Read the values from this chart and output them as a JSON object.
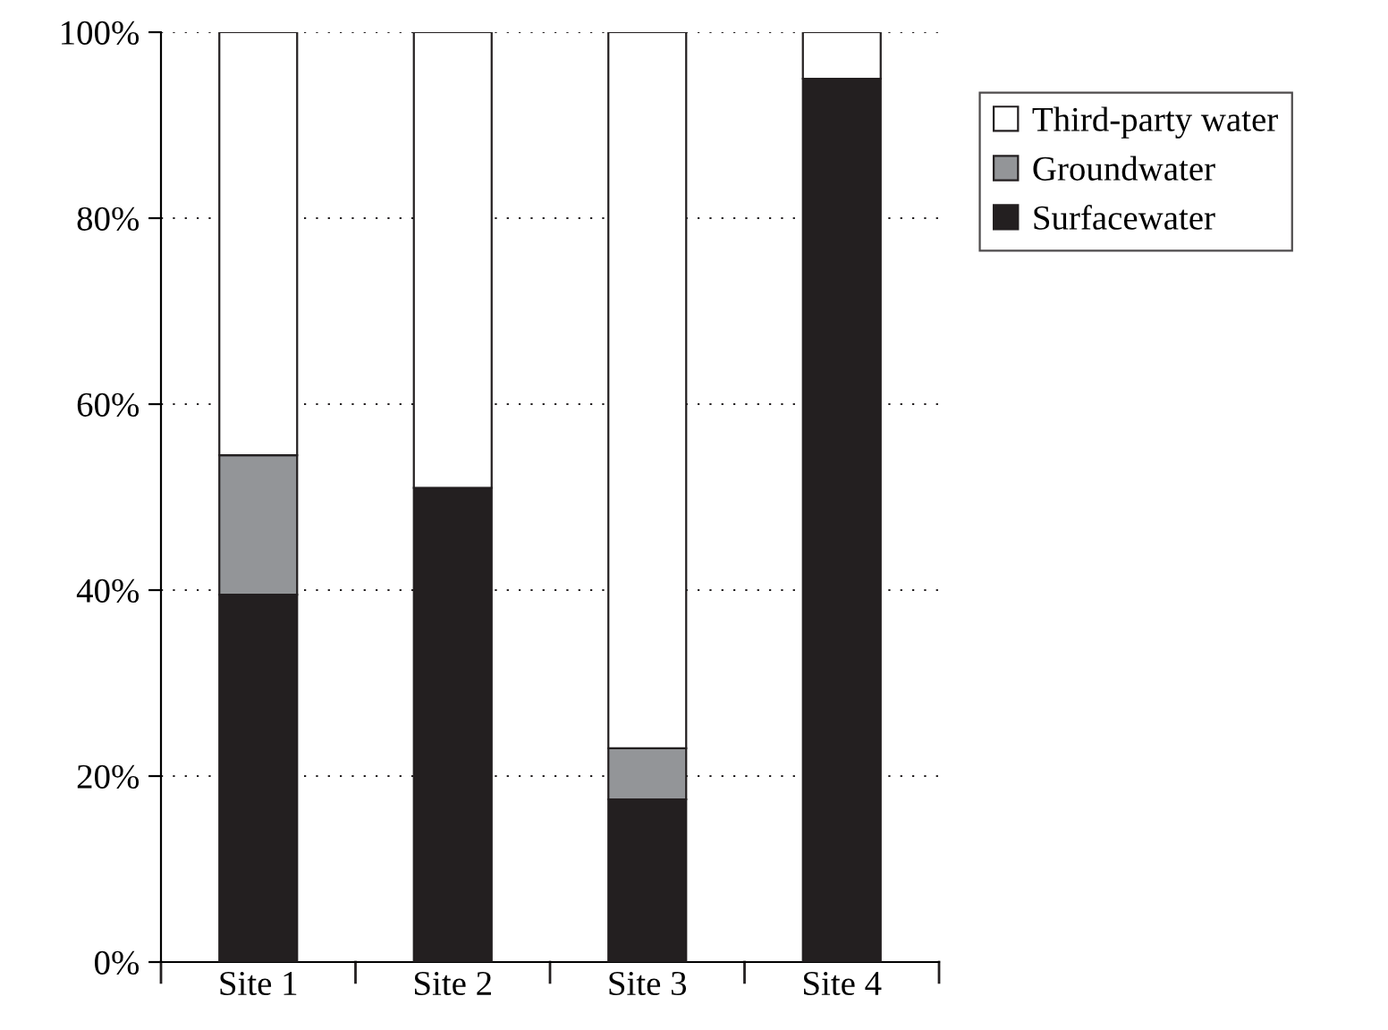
{
  "chart_data": {
    "type": "bar",
    "stacked": true,
    "categories": [
      "Site 1",
      "Site 2",
      "Site 3",
      "Site 4"
    ],
    "series": [
      {
        "name": "Surfacewater",
        "color": "#231f20",
        "values": [
          39.5,
          51,
          17.5,
          95
        ]
      },
      {
        "name": "Groundwater",
        "color": "#939598",
        "values": [
          15,
          0,
          5.5,
          0
        ]
      },
      {
        "name": "Third-party water",
        "color": "#ffffff",
        "values": [
          45.5,
          49,
          77,
          5
        ]
      }
    ],
    "ylim": [
      0,
      100
    ],
    "yticks": [
      {
        "value": 0,
        "label": "0%"
      },
      {
        "value": 20,
        "label": "20%"
      },
      {
        "value": 40,
        "label": "40%"
      },
      {
        "value": 60,
        "label": "60%"
      },
      {
        "value": 80,
        "label": "80%"
      },
      {
        "value": 100,
        "label": "100%"
      }
    ],
    "grid": "y",
    "legend": "right"
  }
}
